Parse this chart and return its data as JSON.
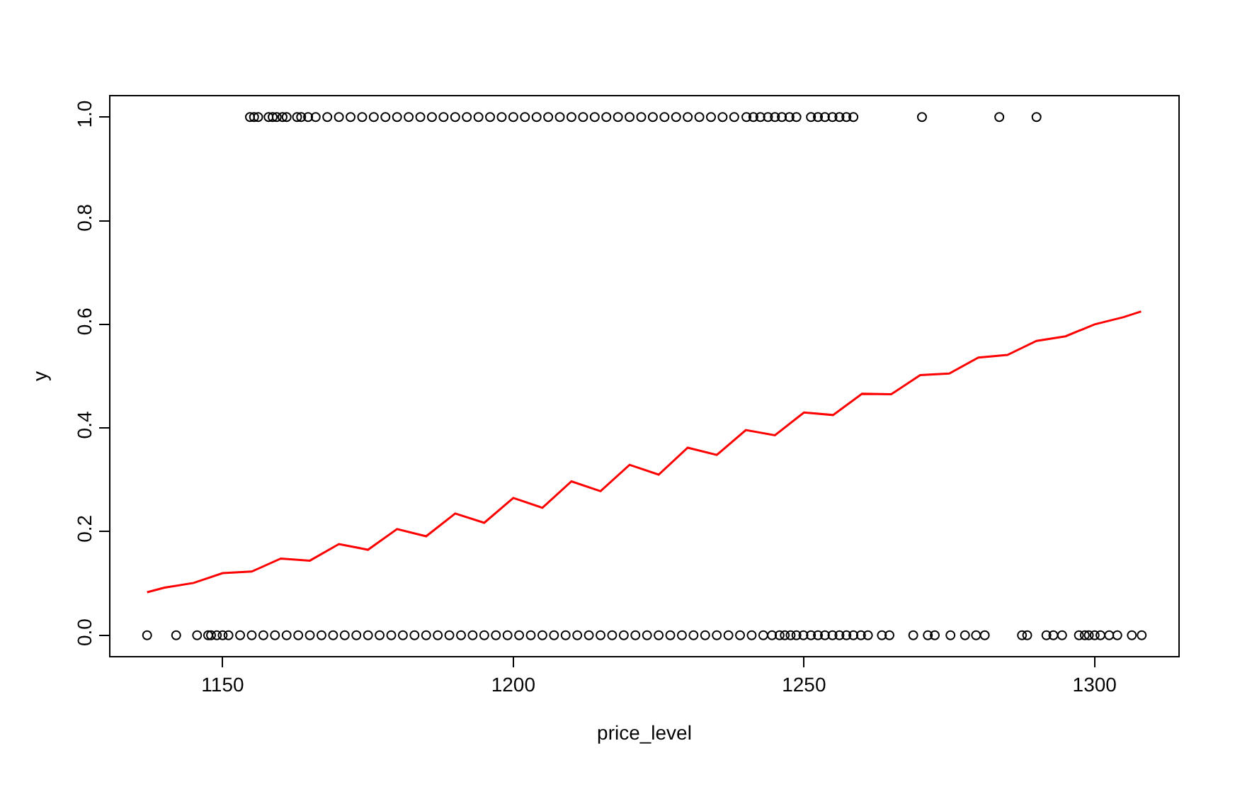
{
  "chart_data": {
    "type": "scatter",
    "xlabel": "price_level",
    "ylabel": "y",
    "xlim": [
      1130.7,
      1314.4
    ],
    "xticks": [
      1150,
      1200,
      1250,
      1300
    ],
    "ylim": [
      -0.04,
      1.04
    ],
    "yticks": [
      {
        "value": 0,
        "label": "0.0"
      },
      {
        "value": 0.2,
        "label": "0.2"
      },
      {
        "value": 0.4,
        "label": "0.4"
      },
      {
        "value": 0.6,
        "label": "0.6"
      },
      {
        "value": 0.8,
        "label": "0.8"
      },
      {
        "value": 1,
        "label": "1.0"
      }
    ],
    "marker": "circle",
    "series": [
      {
        "color": "#000000",
        "x": [
          1137,
          1142,
          1145.6,
          1147.5,
          1148,
          1149,
          1150,
          1151,
          1153,
          1155,
          1157,
          1159,
          1161,
          1163,
          1165,
          1167,
          1169,
          1171,
          1173,
          1175,
          1177,
          1179,
          1181,
          1183,
          1185,
          1187,
          1189,
          1191,
          1193,
          1195,
          1197,
          1199,
          1201,
          1203,
          1205,
          1207,
          1209,
          1211,
          1213,
          1215,
          1217,
          1219,
          1221,
          1223,
          1225,
          1227,
          1229,
          1231,
          1233,
          1235,
          1237,
          1239,
          1241,
          1243,
          1244.5,
          1245.8,
          1246.7,
          1247.7,
          1248.7,
          1249.9,
          1251.2,
          1252.4,
          1253.6,
          1254.9,
          1256.1,
          1257.3,
          1258.5,
          1259.8,
          1261,
          1263.4,
          1264.7,
          1268.8,
          1271.3,
          1272.5,
          1275.2,
          1277.7,
          1279.6,
          1281.1,
          1287.5,
          1288.4,
          1291.7,
          1292.9,
          1294.4,
          1297.3,
          1298.3,
          1299,
          1300,
          1301,
          1302.5,
          1303.9,
          1306.4,
          1308.1
        ],
        "values": [
          0,
          0,
          0,
          0,
          0,
          0,
          0,
          0,
          0,
          0,
          0,
          0,
          0,
          0,
          0,
          0,
          0,
          0,
          0,
          0,
          0,
          0,
          0,
          0,
          0,
          0,
          0,
          0,
          0,
          0,
          0,
          0,
          0,
          0,
          0,
          0,
          0,
          0,
          0,
          0,
          0,
          0,
          0,
          0,
          0,
          0,
          0,
          0,
          0,
          0,
          0,
          0,
          0,
          0,
          0,
          0,
          0,
          0,
          0,
          0,
          0,
          0,
          0,
          0,
          0,
          0,
          0,
          0,
          0,
          0,
          0,
          0,
          0,
          0,
          0,
          0,
          0,
          0,
          0,
          0,
          0,
          0,
          0,
          0,
          0,
          0,
          0,
          0,
          0,
          0,
          0,
          0
        ]
      },
      {
        "color": "#000000",
        "x": [
          1154.7,
          1155.4,
          1156.1,
          1157.9,
          1158.6,
          1159.3,
          1160.3,
          1161,
          1162.8,
          1163.5,
          1164.7,
          1166,
          1168,
          1170,
          1172,
          1174,
          1176,
          1178,
          1180,
          1182,
          1184,
          1186,
          1188,
          1190,
          1192,
          1194,
          1196,
          1198,
          1200,
          1202,
          1204,
          1206,
          1208,
          1210,
          1212,
          1214,
          1216,
          1218,
          1220,
          1222,
          1224,
          1226,
          1228,
          1230,
          1232,
          1234,
          1236,
          1238,
          1240.1,
          1241.3,
          1242.5,
          1243.8,
          1245,
          1246.2,
          1247.5,
          1248.7,
          1251.2,
          1252.4,
          1253.6,
          1254.9,
          1256.1,
          1257.3,
          1258.5,
          1270.3,
          1283.6,
          1290
        ],
        "values": [
          1,
          1,
          1,
          1,
          1,
          1,
          1,
          1,
          1,
          1,
          1,
          1,
          1,
          1,
          1,
          1,
          1,
          1,
          1,
          1,
          1,
          1,
          1,
          1,
          1,
          1,
          1,
          1,
          1,
          1,
          1,
          1,
          1,
          1,
          1,
          1,
          1,
          1,
          1,
          1,
          1,
          1,
          1,
          1,
          1,
          1,
          1,
          1,
          1,
          1,
          1,
          1,
          1,
          1,
          1,
          1,
          1,
          1,
          1,
          1,
          1,
          1,
          1,
          1,
          1,
          1
        ]
      },
      {
        "type": "line",
        "color": "#ff0000",
        "marker": "none",
        "x": [
          1137,
          1140,
          1145,
          1150,
          1155,
          1160,
          1165,
          1170,
          1175,
          1180,
          1185,
          1190,
          1195,
          1200,
          1205,
          1210,
          1215,
          1220,
          1225,
          1230,
          1235,
          1240,
          1245,
          1250,
          1255,
          1260,
          1265,
          1270,
          1275,
          1280,
          1285,
          1290,
          1295,
          1300,
          1305,
          1308
        ],
        "values": [
          0.083,
          0.092,
          0.101,
          0.12,
          0.123,
          0.148,
          0.144,
          0.176,
          0.165,
          0.205,
          0.191,
          0.235,
          0.217,
          0.265,
          0.246,
          0.297,
          0.278,
          0.329,
          0.31,
          0.362,
          0.348,
          0.396,
          0.386,
          0.43,
          0.425,
          0.466,
          0.465,
          0.502,
          0.505,
          0.536,
          0.541,
          0.568,
          0.577,
          0.6,
          0.614,
          0.625
        ]
      }
    ]
  }
}
